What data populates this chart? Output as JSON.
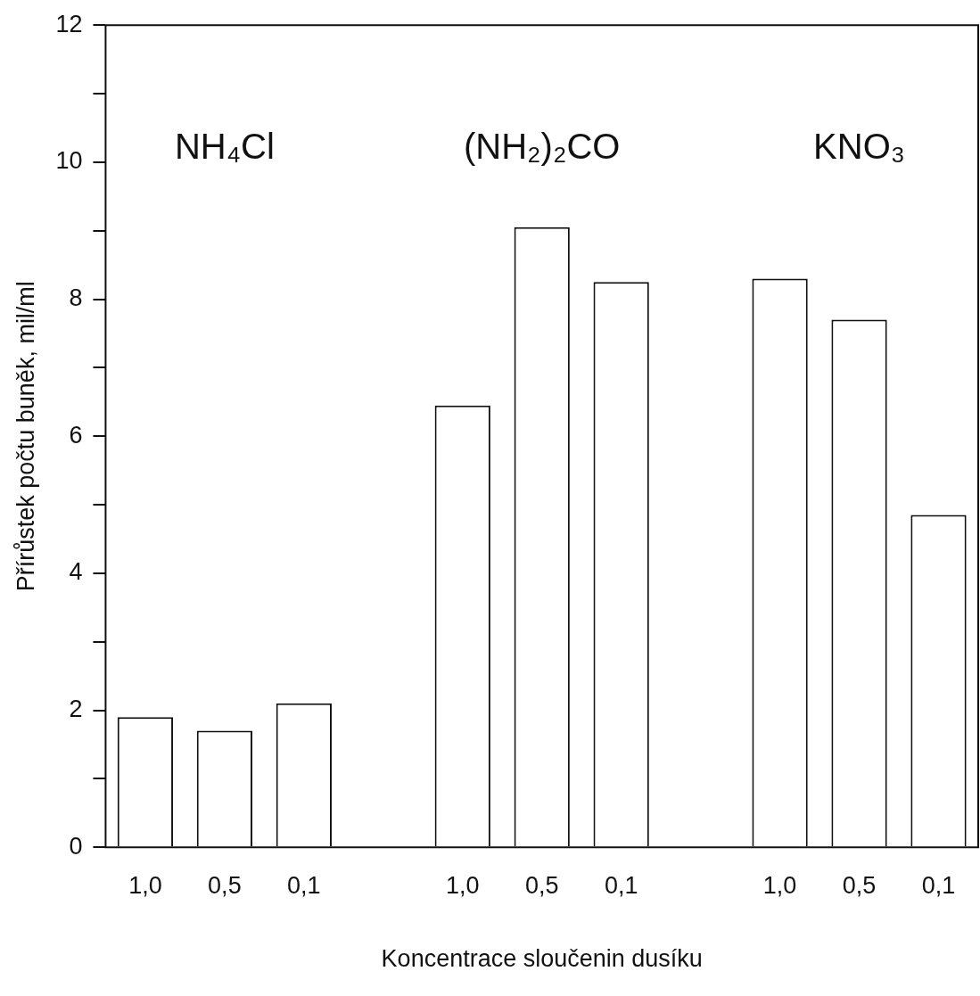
{
  "chart_data": {
    "type": "bar",
    "xlabel": "Koncentrace sloučenin dusíku",
    "ylabel": "Přírůstek počtu buněk, mil/ml",
    "categories": [
      "1,0",
      "0,5",
      "0,1",
      null,
      "1,0",
      "0,5",
      "0,1",
      null,
      "1,0",
      "0,5",
      "0,1"
    ],
    "values": [
      1.9,
      1.7,
      2.1,
      null,
      6.45,
      9.05,
      8.25,
      null,
      8.3,
      7.7,
      4.85
    ],
    "color": "#ffffff",
    "ylim": [
      0,
      12
    ],
    "yticks": [
      0,
      {
        "value": 1,
        "label": null
      },
      2,
      {
        "value": 3,
        "label": null
      },
      4,
      {
        "value": 5,
        "label": null
      },
      6,
      {
        "value": 7,
        "label": null
      },
      8,
      {
        "value": 9,
        "label": null
      },
      10,
      {
        "value": 11,
        "label": null
      },
      12
    ],
    "annotations": [
      "NH₄Cl",
      "(NH₂)₂CO",
      "KNO₃"
    ],
    "legend": false
  }
}
